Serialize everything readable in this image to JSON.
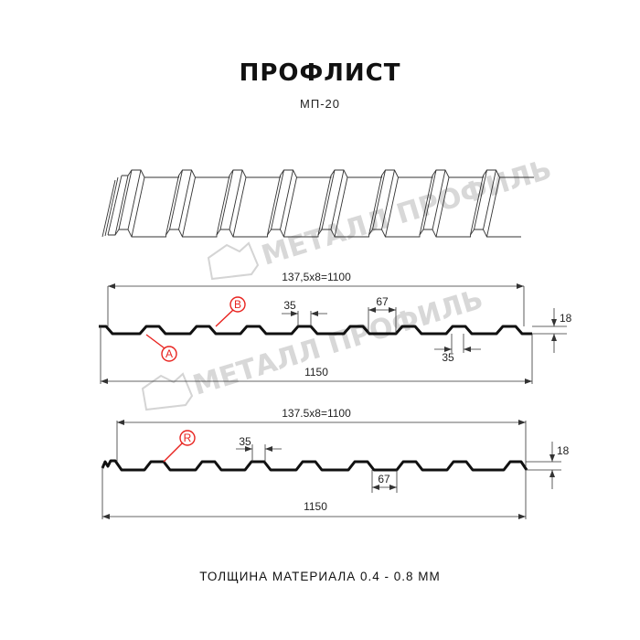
{
  "header": {
    "title": "ПРОФЛИСТ",
    "subtitle": "МП-20"
  },
  "watermark": {
    "text": "МЕТАЛЛ ПРОФИЛЬ",
    "color": "#cfcfcf"
  },
  "profile_1": {
    "overall_pitch": "137,5x8=1100",
    "overall_width": "1150",
    "crest_width": "35",
    "trough_dim": "67",
    "bottom_crest_width": "35",
    "height": "18",
    "marker_a": "A",
    "marker_b": "B"
  },
  "profile_2": {
    "overall_pitch": "137.5x8=1100",
    "overall_width": "1150",
    "crest_width": "35",
    "trough_dim": "67",
    "height": "18",
    "marker_r": "R"
  },
  "footer": {
    "thickness": "ТОЛЩИНА МАТЕРИАЛА 0.4 - 0.8 ММ"
  },
  "colors": {
    "profile": "#111111",
    "marker": "#e8231f"
  }
}
